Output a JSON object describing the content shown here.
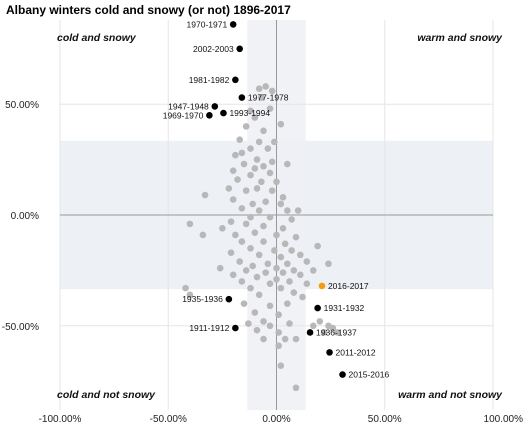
{
  "chart_data": {
    "type": "scatter",
    "title": "Albany winters cold and snowy (or not) 1896-2017",
    "xlim": [
      -1.0,
      1.0
    ],
    "ylim": [
      -0.88,
      0.88
    ],
    "x_ticks": [
      {
        "value": -1.0,
        "label": "-100.00%"
      },
      {
        "value": -0.5,
        "label": "-50.00%"
      },
      {
        "value": 0.0,
        "label": "0.00%"
      },
      {
        "value": 0.5,
        "label": "50.00%"
      },
      {
        "value": 1.0,
        "label": "100.00%"
      }
    ],
    "y_ticks": [
      {
        "value": 0.5,
        "label": "50.00%"
      },
      {
        "value": 0.0,
        "label": "0.00%"
      },
      {
        "value": -0.5,
        "label": "-50.00%"
      }
    ],
    "quadrant_labels": {
      "top_left": "cold and snowy",
      "top_right": "warm and snowy",
      "bottom_left": "cold and not snowy",
      "bottom_right": "warm and not snowy"
    },
    "bands": {
      "vertical": [
        -0.135,
        0.135
      ],
      "horizontal": [
        -0.335,
        0.335
      ]
    },
    "colors": {
      "background_point": "#b8b8b8",
      "labeled_point": "#000000",
      "highlight_point": "#f39c12",
      "band": "#edf0f4",
      "axis_line": "#999999",
      "grid": "#e6e6e6"
    },
    "labeled_points": [
      {
        "label": "1970-1971",
        "x": -0.2,
        "y": 0.86,
        "side": "left"
      },
      {
        "label": "2002-2003",
        "x": -0.17,
        "y": 0.75,
        "side": "left"
      },
      {
        "label": "1981-1982",
        "x": -0.19,
        "y": 0.61,
        "side": "left"
      },
      {
        "label": "1977-1978",
        "x": -0.16,
        "y": 0.53,
        "side": "right"
      },
      {
        "label": "1947-1948",
        "x": -0.285,
        "y": 0.49,
        "side": "left"
      },
      {
        "label": "1969-1970",
        "x": -0.31,
        "y": 0.45,
        "side": "left"
      },
      {
        "label": "1993-1994",
        "x": -0.245,
        "y": 0.46,
        "side": "right"
      },
      {
        "label": "1935-1936",
        "x": -0.22,
        "y": -0.38,
        "side": "left"
      },
      {
        "label": "1931-1932",
        "x": 0.19,
        "y": -0.42,
        "side": "right"
      },
      {
        "label": "1911-1912",
        "x": -0.19,
        "y": -0.51,
        "side": "left"
      },
      {
        "label": "1936-1937",
        "x": 0.155,
        "y": -0.53,
        "side": "right"
      },
      {
        "label": "2011-2012",
        "x": 0.245,
        "y": -0.62,
        "side": "right"
      },
      {
        "label": "2015-2016",
        "x": 0.305,
        "y": -0.72,
        "side": "right"
      }
    ],
    "highlight_points": [
      {
        "label": "2016-2017",
        "x": 0.21,
        "y": -0.32,
        "side": "right"
      }
    ],
    "background_points": [
      [
        -0.08,
        0.57
      ],
      [
        -0.05,
        0.58
      ],
      [
        -0.07,
        0.53
      ],
      [
        -0.02,
        0.56
      ],
      [
        -0.12,
        0.47
      ],
      [
        -0.03,
        0.48
      ],
      [
        -0.1,
        0.44
      ],
      [
        0.02,
        0.41
      ],
      [
        -0.14,
        0.4
      ],
      [
        -0.06,
        0.38
      ],
      [
        -0.17,
        0.34
      ],
      [
        -0.08,
        0.33
      ],
      [
        -0.04,
        0.3
      ],
      [
        -0.01,
        0.33
      ],
      [
        -0.12,
        0.3
      ],
      [
        -0.16,
        0.28
      ],
      [
        -0.19,
        0.27
      ],
      [
        -0.09,
        0.25
      ],
      [
        -0.15,
        0.23
      ],
      [
        -0.06,
        0.22
      ],
      [
        -0.02,
        0.24
      ],
      [
        -0.1,
        0.21
      ],
      [
        -0.2,
        0.2
      ],
      [
        -0.12,
        0.18
      ],
      [
        -0.03,
        0.19
      ],
      [
        0.05,
        0.23
      ],
      [
        -0.18,
        0.16
      ],
      [
        -0.07,
        0.15
      ],
      [
        0.0,
        0.15
      ],
      [
        -0.22,
        0.12
      ],
      [
        -0.14,
        0.11
      ],
      [
        -0.09,
        0.12
      ],
      [
        -0.02,
        0.11
      ],
      [
        0.03,
        0.08
      ],
      [
        -0.33,
        0.09
      ],
      [
        -0.2,
        0.07
      ],
      [
        -0.11,
        0.05
      ],
      [
        -0.05,
        0.06
      ],
      [
        0.02,
        0.05
      ],
      [
        -0.16,
        0.03
      ],
      [
        -0.08,
        0.02
      ],
      [
        0.05,
        0.02
      ],
      [
        0.1,
        0.02
      ],
      [
        -0.12,
        -0.01
      ],
      [
        -0.03,
        -0.01
      ],
      [
        0.07,
        -0.02
      ],
      [
        -0.21,
        -0.03
      ],
      [
        -0.14,
        -0.04
      ],
      [
        -0.06,
        -0.05
      ],
      [
        0.03,
        -0.06
      ],
      [
        -0.25,
        -0.06
      ],
      [
        -0.4,
        -0.04
      ],
      [
        -0.34,
        -0.09
      ],
      [
        -0.19,
        -0.09
      ],
      [
        -0.1,
        -0.08
      ],
      [
        0.0,
        -0.09
      ],
      [
        0.09,
        -0.1
      ],
      [
        -0.16,
        -0.12
      ],
      [
        -0.06,
        -0.12
      ],
      [
        0.04,
        -0.13
      ],
      [
        -0.12,
        -0.15
      ],
      [
        -0.01,
        -0.16
      ],
      [
        0.07,
        -0.16
      ],
      [
        0.19,
        -0.14
      ],
      [
        -0.21,
        -0.17
      ],
      [
        -0.08,
        -0.18
      ],
      [
        0.02,
        -0.19
      ],
      [
        0.11,
        -0.18
      ],
      [
        -0.17,
        -0.21
      ],
      [
        -0.04,
        -0.22
      ],
      [
        0.05,
        -0.22
      ],
      [
        0.14,
        -0.21
      ],
      [
        -0.11,
        -0.23
      ],
      [
        0.0,
        -0.24
      ],
      [
        0.24,
        -0.22
      ],
      [
        -0.26,
        -0.24
      ],
      [
        -0.14,
        -0.25
      ],
      [
        -0.05,
        -0.26
      ],
      [
        0.03,
        -0.26
      ],
      [
        0.08,
        -0.25
      ],
      [
        0.17,
        -0.25
      ],
      [
        -0.2,
        -0.27
      ],
      [
        -0.09,
        -0.28
      ],
      [
        0.0,
        -0.29
      ],
      [
        0.11,
        -0.27
      ],
      [
        -0.16,
        -0.3
      ],
      [
        -0.03,
        -0.31
      ],
      [
        0.06,
        -0.3
      ],
      [
        0.14,
        -0.31
      ],
      [
        -0.12,
        -0.33
      ],
      [
        0.02,
        -0.33
      ],
      [
        -0.42,
        -0.33
      ],
      [
        -0.4,
        -0.36
      ],
      [
        -0.08,
        -0.36
      ],
      [
        0.08,
        -0.35
      ],
      [
        0.12,
        -0.37
      ],
      [
        -0.15,
        -0.4
      ],
      [
        -0.03,
        -0.41
      ],
      [
        0.05,
        -0.4
      ],
      [
        -0.1,
        -0.44
      ],
      [
        0.01,
        -0.45
      ],
      [
        -0.06,
        -0.48
      ],
      [
        0.2,
        -0.48
      ],
      [
        0.24,
        -0.5
      ],
      [
        0.26,
        -0.51
      ],
      [
        -0.13,
        -0.49
      ],
      [
        0.17,
        -0.5
      ],
      [
        -0.03,
        -0.5
      ],
      [
        0.06,
        -0.49
      ],
      [
        -0.09,
        -0.52
      ],
      [
        0.01,
        -0.53
      ],
      [
        0.22,
        -0.53
      ],
      [
        0.28,
        -0.53
      ],
      [
        -0.06,
        -0.56
      ],
      [
        0.04,
        -0.56
      ],
      [
        0.09,
        -0.56
      ],
      [
        0.02,
        -0.68
      ],
      [
        0.09,
        -0.78
      ],
      [
        0.01,
        -0.59
      ]
    ]
  }
}
